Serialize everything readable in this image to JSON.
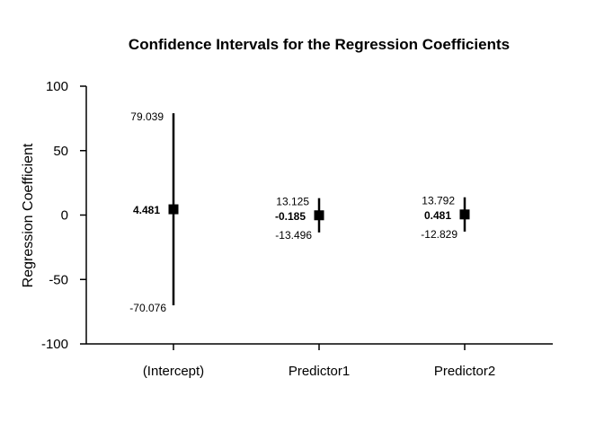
{
  "chart_data": {
    "type": "errorbar",
    "title": "Confidence Intervals for the Regression Coefficients",
    "xlabel": "",
    "ylabel": "Regression Coefficient",
    "ylim": [
      -100,
      100
    ],
    "yticks": [
      -100,
      -50,
      0,
      50,
      100
    ],
    "ytick_labels": [
      "-100",
      "-50",
      "0",
      "50",
      "100"
    ],
    "grid": false,
    "categories": [
      "(Intercept)",
      "Predictor1",
      "Predictor2"
    ],
    "estimates": [
      4.481,
      -0.185,
      0.481
    ],
    "lower": [
      -70.076,
      -13.496,
      -12.829
    ],
    "upper": [
      79.039,
      13.125,
      13.792
    ],
    "estimate_labels": [
      "4.481",
      "-0.185",
      "0.481"
    ],
    "lower_labels": [
      "-70.076",
      "-13.496",
      "-12.829"
    ],
    "upper_labels": [
      "79.039",
      "13.125",
      "13.792"
    ]
  }
}
